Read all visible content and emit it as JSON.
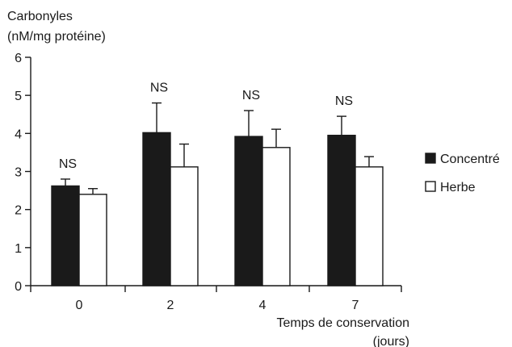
{
  "chart_data": {
    "type": "bar",
    "ylabel_lines": [
      "Carbonyles",
      "(nM/mg protéine)"
    ],
    "xlabel_lines": [
      "Temps de conservation",
      "(jours)"
    ],
    "categories": [
      "0",
      "2",
      "4",
      "7"
    ],
    "ylim": [
      0,
      6
    ],
    "yticks": [
      0,
      1,
      2,
      3,
      4,
      5,
      6
    ],
    "ytick_labels": [
      "0",
      "1",
      "2",
      "3",
      "4",
      "5",
      "6"
    ],
    "series": [
      {
        "name": "Concentré",
        "color": "#1a1a1a",
        "values": [
          2.62,
          4.02,
          3.92,
          3.95
        ],
        "errors": [
          0.18,
          0.78,
          0.68,
          0.5
        ]
      },
      {
        "name": "Herbe",
        "color": "#ffffff",
        "values": [
          2.4,
          3.12,
          3.63,
          3.12
        ],
        "errors": [
          0.15,
          0.6,
          0.48,
          0.27
        ]
      }
    ],
    "annotations": [
      "NS",
      "NS",
      "NS",
      "NS"
    ],
    "legend_position": "right",
    "grid": false
  }
}
